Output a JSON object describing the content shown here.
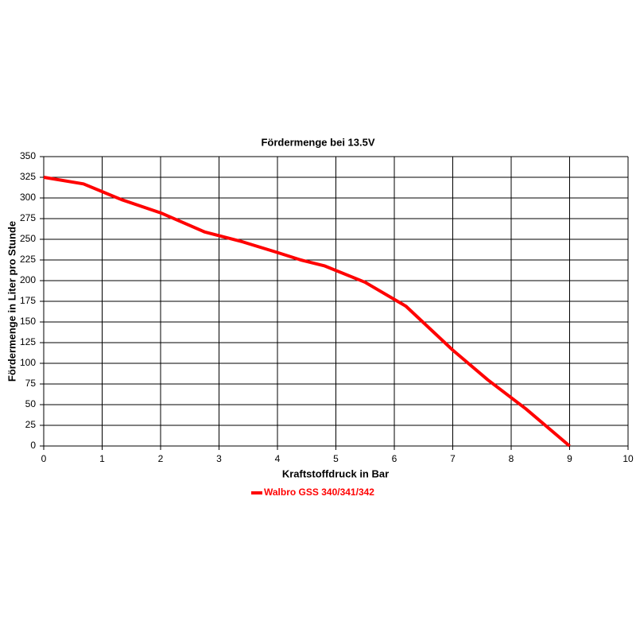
{
  "chart_data": {
    "type": "line",
    "title": "Fördermenge bei 13.5V",
    "x_label": "Kraftstoffdruck in Bar",
    "y_label": "Fördermenge in Liter pro Stunde",
    "x": [
      0,
      0.68,
      1.33,
      2,
      2.75,
      3.4,
      4,
      4.4,
      4.8,
      5.5,
      6.2,
      7,
      7.6,
      8.25,
      9
    ],
    "series": [
      {
        "name": "Walbro GSS 340/341/342",
        "color": "#ff0000",
        "values": [
          325,
          317,
          298,
          282,
          259,
          247,
          234,
          225,
          218,
          198,
          169,
          116,
          80,
          45,
          0
        ]
      }
    ],
    "xlim": [
      0,
      10
    ],
    "xticks": [
      0,
      1,
      2,
      3,
      4,
      5,
      6,
      7,
      8,
      9,
      10
    ],
    "ylim": [
      0,
      350
    ],
    "yticks": [
      0,
      25,
      50,
      75,
      100,
      125,
      150,
      175,
      200,
      225,
      250,
      275,
      300,
      325,
      350
    ],
    "grid": true,
    "legend": "bottom"
  }
}
